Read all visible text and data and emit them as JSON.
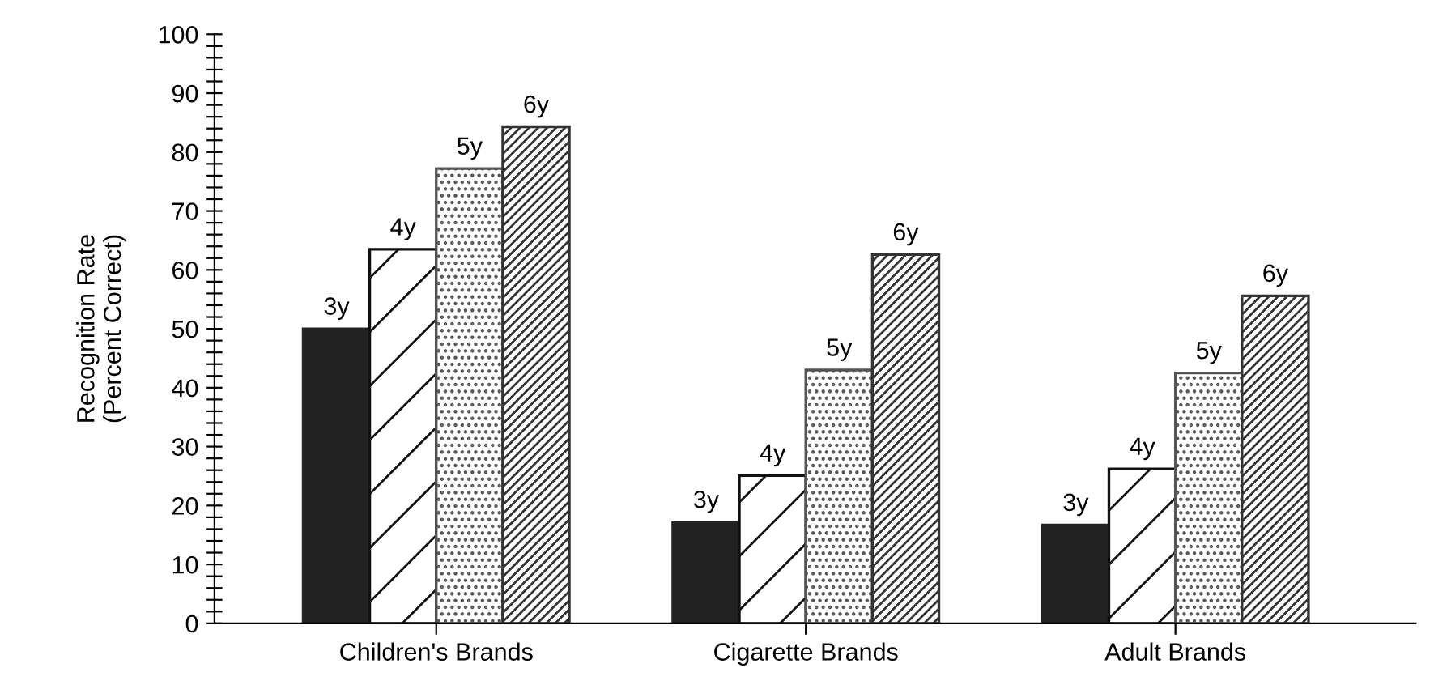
{
  "chart_data": {
    "type": "bar",
    "ylabel": "Recognition Rate\n(Percent Correct)",
    "categories": [
      "Children's Brands",
      "Cigarette Brands",
      "Adult Brands"
    ],
    "series": [
      {
        "name": "3y",
        "color": "#222222",
        "values": [
          50,
          17.2,
          16.7
        ]
      },
      {
        "name": "4y",
        "color": "#111111",
        "values": [
          63.5,
          25.1,
          26.2
        ]
      },
      {
        "name": "5y",
        "color": "#555555",
        "values": [
          77.2,
          43.0,
          42.5
        ]
      },
      {
        "name": "6y",
        "color": "#333333",
        "values": [
          84.3,
          62.6,
          55.6
        ]
      }
    ],
    "ylim": [
      0,
      100
    ],
    "yticks": [
      0,
      {
        "value": 2,
        "label": null
      },
      {
        "value": 4,
        "label": null
      },
      {
        "value": 6,
        "label": null
      },
      {
        "value": 8,
        "label": null
      },
      10,
      {
        "value": 12,
        "label": null
      },
      {
        "value": 14,
        "label": null
      },
      {
        "value": 16,
        "label": null
      },
      {
        "value": 18,
        "label": null
      },
      20,
      {
        "value": 22,
        "label": null
      },
      {
        "value": 24,
        "label": null
      },
      {
        "value": 26,
        "label": null
      },
      {
        "value": 28,
        "label": null
      },
      30,
      {
        "value": 32,
        "label": null
      },
      {
        "value": 34,
        "label": null
      },
      {
        "value": 36,
        "label": null
      },
      {
        "value": 38,
        "label": null
      },
      40,
      {
        "value": 42,
        "label": null
      },
      {
        "value": 44,
        "label": null
      },
      {
        "value": 46,
        "label": null
      },
      {
        "value": 48,
        "label": null
      },
      50,
      {
        "value": 52,
        "label": null
      },
      {
        "value": 54,
        "label": null
      },
      {
        "value": 56,
        "label": null
      },
      {
        "value": 58,
        "label": null
      },
      60,
      {
        "value": 62,
        "label": null
      },
      {
        "value": 64,
        "label": null
      },
      {
        "value": 66,
        "label": null
      },
      {
        "value": 68,
        "label": null
      },
      70,
      {
        "value": 72,
        "label": null
      },
      {
        "value": 74,
        "label": null
      },
      {
        "value": 76,
        "label": null
      },
      {
        "value": 78,
        "label": null
      },
      80,
      {
        "value": 82,
        "label": null
      },
      {
        "value": 84,
        "label": null
      },
      {
        "value": 86,
        "label": null
      },
      {
        "value": 88,
        "label": null
      },
      90,
      {
        "value": 92,
        "label": null
      },
      {
        "value": 94,
        "label": null
      },
      {
        "value": 96,
        "label": null
      },
      {
        "value": 98,
        "label": null
      },
      100
    ],
    "grid": false
  }
}
